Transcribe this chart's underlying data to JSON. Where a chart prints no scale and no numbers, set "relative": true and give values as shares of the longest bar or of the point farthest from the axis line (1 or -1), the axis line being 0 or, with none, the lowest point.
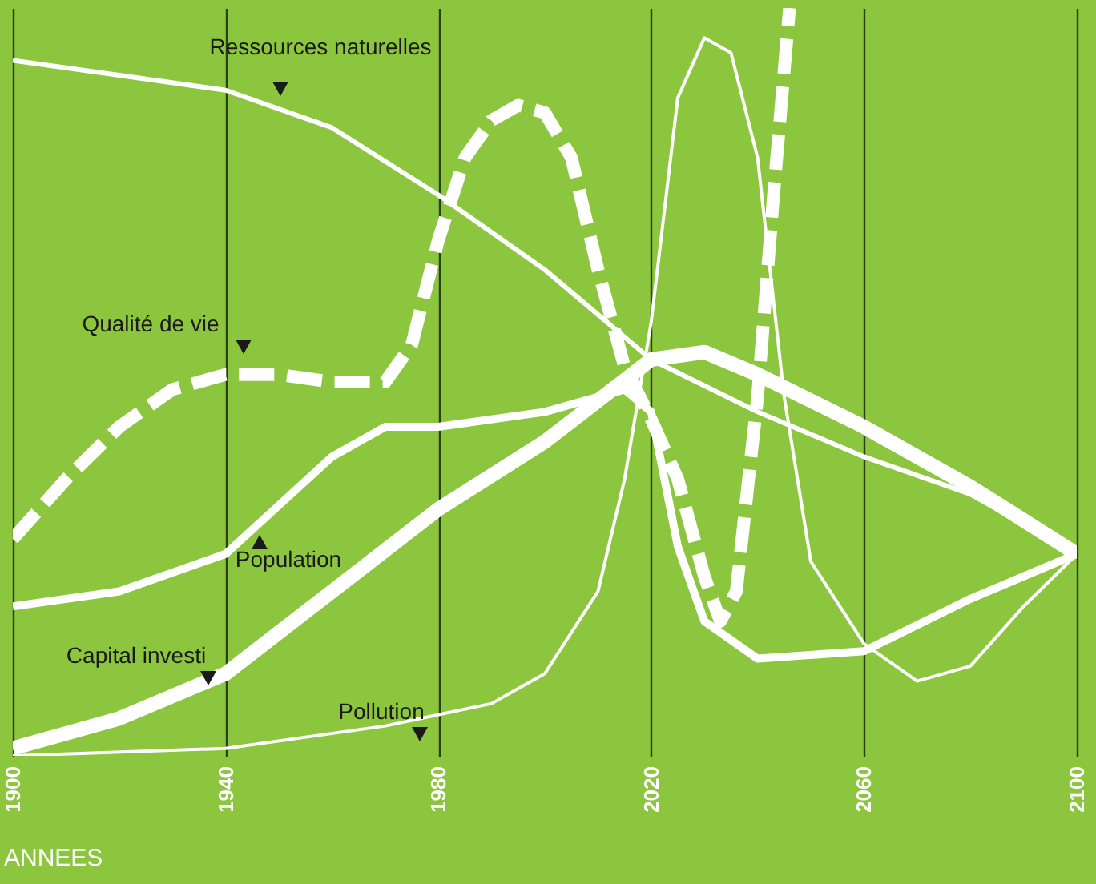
{
  "chart_data": {
    "type": "line",
    "relative": true,
    "xlabel": "ANNEES",
    "xlim": [
      1900,
      2100
    ],
    "xticks": [
      1900,
      1940,
      1980,
      2020,
      2060,
      2100
    ],
    "grid": "x",
    "series": [
      {
        "name": "Ressources naturelles",
        "color": "#ffffff",
        "line_style": "solid",
        "x": [
          1900,
          1920,
          1940,
          1960,
          1980,
          2000,
          2020,
          2040,
          2060,
          2080,
          2100
        ],
        "values": [
          0.93,
          0.91,
          0.89,
          0.84,
          0.75,
          0.65,
          0.53,
          0.46,
          0.4,
          0.35,
          0.27
        ]
      },
      {
        "name": "Qualité de vie",
        "color": "#ffffff",
        "line_style": "dashed",
        "x": [
          1900,
          1910,
          1920,
          1930,
          1940,
          1950,
          1960,
          1970,
          1975,
          1980,
          1985,
          1990,
          1995,
          2000,
          2005,
          2010,
          2015,
          2020,
          2025,
          2030,
          2033,
          2036,
          2040,
          2043,
          2046
        ],
        "values": [
          0.29,
          0.37,
          0.44,
          0.49,
          0.51,
          0.51,
          0.5,
          0.5,
          0.55,
          0.69,
          0.8,
          0.85,
          0.87,
          0.86,
          0.8,
          0.65,
          0.52,
          0.45,
          0.37,
          0.24,
          0.18,
          0.22,
          0.48,
          0.75,
          1.0
        ]
      },
      {
        "name": "Population",
        "color": "#ffffff",
        "line_style": "solid",
        "x": [
          1900,
          1920,
          1940,
          1960,
          1970,
          1980,
          2000,
          2015,
          2020,
          2025,
          2030,
          2040,
          2060,
          2080,
          2100
        ],
        "values": [
          0.2,
          0.22,
          0.27,
          0.4,
          0.44,
          0.44,
          0.46,
          0.49,
          0.46,
          0.28,
          0.18,
          0.13,
          0.14,
          0.21,
          0.27
        ]
      },
      {
        "name": "Capital investi",
        "color": "#ffffff",
        "line_style": "solid",
        "x": [
          1900,
          1920,
          1940,
          1960,
          1980,
          2000,
          2020,
          2030,
          2040,
          2060,
          2080,
          2100
        ],
        "values": [
          0.01,
          0.05,
          0.11,
          0.22,
          0.33,
          0.42,
          0.53,
          0.54,
          0.51,
          0.44,
          0.36,
          0.27
        ]
      },
      {
        "name": "Pollution",
        "color": "#ffffff",
        "line_style": "solid",
        "x": [
          1900,
          1940,
          1970,
          1990,
          2000,
          2010,
          2015,
          2020,
          2025,
          2030,
          2035,
          2040,
          2045,
          2050,
          2060,
          2070,
          2080,
          2090,
          2100
        ],
        "values": [
          0,
          0.01,
          0.04,
          0.07,
          0.11,
          0.22,
          0.37,
          0.58,
          0.88,
          0.96,
          0.94,
          0.8,
          0.48,
          0.26,
          0.15,
          0.1,
          0.12,
          0.2,
          0.27
        ]
      }
    ]
  }
}
